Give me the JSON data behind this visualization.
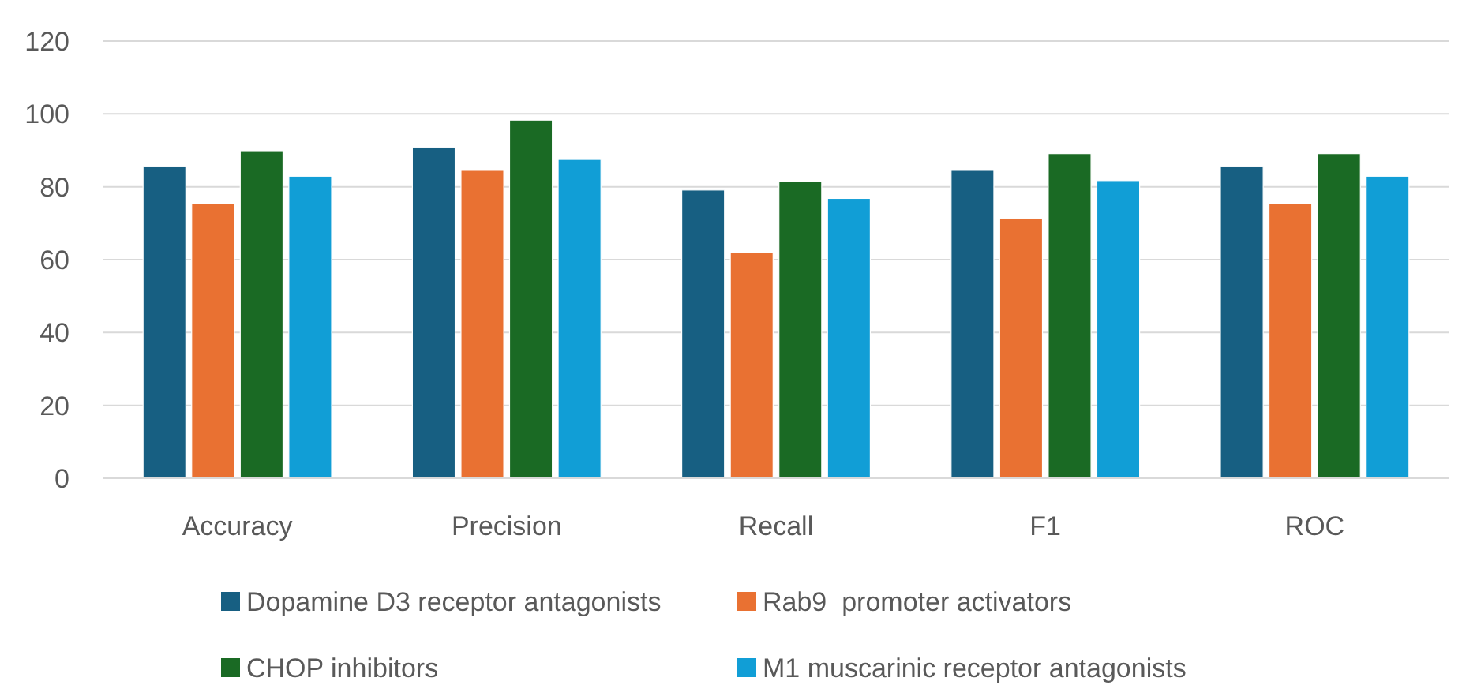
{
  "chart_data": {
    "type": "bar",
    "categories": [
      "Accuracy",
      "Precision",
      "Recall",
      "F1",
      "ROC"
    ],
    "series": [
      {
        "name": "Dopamine D3 receptor antagonists",
        "color": "#175f82",
        "values": [
          85.6,
          90.9,
          79.1,
          84.5,
          85.6
        ]
      },
      {
        "name": "Rab9  promoter activators",
        "color": "#e97132",
        "values": [
          75.3,
          84.5,
          61.9,
          71.4,
          75.3
        ]
      },
      {
        "name": "CHOP inhibitors",
        "color": "#1a6a24",
        "values": [
          89.9,
          98.3,
          81.4,
          89.1,
          89.1
        ]
      },
      {
        "name": "M1 muscarinic receptor antagonists",
        "color": "#119ed6",
        "values": [
          82.9,
          87.5,
          76.8,
          81.7,
          82.9
        ]
      }
    ],
    "ylim": [
      0,
      120
    ],
    "yticks": [
      0,
      20,
      40,
      60,
      80,
      100,
      120
    ],
    "grid": "y",
    "legend": "bottom"
  }
}
